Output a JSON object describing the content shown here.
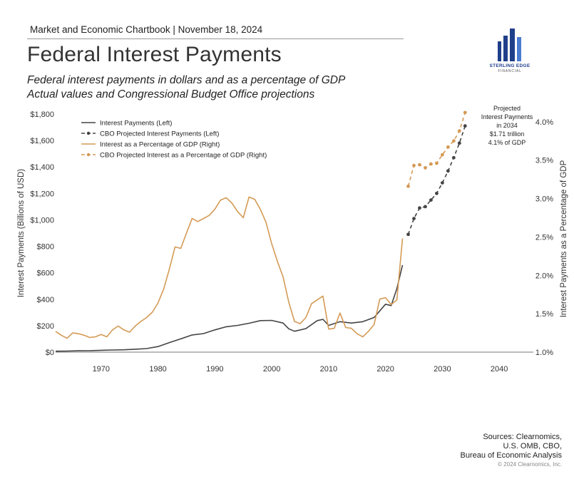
{
  "header": {
    "line": "Market and Economic Chartbook | November 18, 2024",
    "title": "Federal Interest Payments",
    "subtitle_1": "Federal interest payments in dollars and as a percentage of GDP",
    "subtitle_2": "Actual values and Congressional Budget Office projections"
  },
  "logo": {
    "name": "STERLING EDGE",
    "sub": "FINANCIAL",
    "color": "#1f3f8a"
  },
  "annotation": [
    "Projected",
    "Interest Payments",
    "in 2034",
    "$1.71 trillion",
    "4.1% of GDP"
  ],
  "sources": [
    "Sources: Clearnomics,",
    "U.S. OMB, CBO,",
    "Bureau of Economic Analysis"
  ],
  "copyright": "© 2024 Clearnomics, Inc.",
  "chart_data": {
    "type": "line",
    "ylabel": "Interest Payments (Billions of USD)",
    "y2label": "Interest Payments as a Percentage of GDP",
    "xlim": [
      1962,
      2046
    ],
    "ylim": [
      0,
      1800
    ],
    "y2lim": [
      1.0,
      4.1
    ],
    "x_ticks": [
      "1970",
      "1980",
      "1990",
      "2000",
      "2010",
      "2020",
      "2030",
      "2040"
    ],
    "x_tick_values": [
      1970,
      1980,
      1990,
      2000,
      2010,
      2020,
      2030,
      2040
    ],
    "y_ticks": [
      "$0",
      "$200",
      "$400",
      "$600",
      "$800",
      "$1,000",
      "$1,200",
      "$1,400",
      "$1,600",
      "$1,800"
    ],
    "y_tick_values": [
      0,
      200,
      400,
      600,
      800,
      1000,
      1200,
      1400,
      1600,
      1800
    ],
    "y2_ticks": [
      "1.0%",
      "1.5%",
      "2.0%",
      "2.5%",
      "3.0%",
      "3.5%",
      "4.0%"
    ],
    "y2_tick_values": [
      1.0,
      1.5,
      2.0,
      2.5,
      3.0,
      3.5,
      4.0
    ],
    "legend_position": "top-left",
    "colors": {
      "dark": "#444444",
      "orange": "#d49a55"
    },
    "series": [
      {
        "name": "Interest Payments (Left)",
        "axis": "left",
        "style": "solid",
        "color": "#444444",
        "x": [
          1962,
          1964,
          1966,
          1968,
          1970,
          1972,
          1974,
          1976,
          1978,
          1980,
          1982,
          1984,
          1986,
          1988,
          1990,
          1992,
          1994,
          1996,
          1998,
          2000,
          2002,
          2003,
          2004,
          2006,
          2008,
          2009,
          2010,
          2012,
          2014,
          2016,
          2018,
          2020,
          2021,
          2022,
          2023
        ],
        "y": [
          7,
          8,
          10,
          11,
          14,
          16,
          18,
          22,
          27,
          42,
          72,
          100,
          130,
          140,
          168,
          192,
          202,
          218,
          238,
          240,
          220,
          176,
          158,
          178,
          238,
          248,
          202,
          230,
          220,
          230,
          262,
          362,
          352,
          480,
          658
        ]
      },
      {
        "name": "CBO Projected Interest Payments (Left)",
        "axis": "left",
        "style": "dashed",
        "color": "#444444",
        "x": [
          2024,
          2025,
          2026,
          2027,
          2028,
          2029,
          2030,
          2031,
          2032,
          2033,
          2034
        ],
        "y": [
          890,
          1010,
          1090,
          1100,
          1150,
          1200,
          1280,
          1370,
          1470,
          1580,
          1710
        ]
      },
      {
        "name": "Interest as a Percentage of GDP (Right)",
        "axis": "right",
        "style": "solid",
        "color": "#d49a55",
        "x": [
          1962,
          1963,
          1964,
          1965,
          1966,
          1967,
          1968,
          1969,
          1970,
          1971,
          1972,
          1973,
          1974,
          1975,
          1976,
          1977,
          1978,
          1979,
          1980,
          1981,
          1982,
          1983,
          1984,
          1985,
          1986,
          1987,
          1988,
          1989,
          1990,
          1991,
          1992,
          1993,
          1994,
          1995,
          1996,
          1997,
          1998,
          1999,
          2000,
          2001,
          2002,
          2003,
          2004,
          2005,
          2006,
          2007,
          2008,
          2009,
          2010,
          2011,
          2012,
          2013,
          2014,
          2015,
          2016,
          2017,
          2018,
          2019,
          2020,
          2021,
          2022,
          2023
        ],
        "y": [
          1.27,
          1.22,
          1.18,
          1.25,
          1.24,
          1.22,
          1.19,
          1.2,
          1.23,
          1.2,
          1.29,
          1.34,
          1.29,
          1.26,
          1.34,
          1.4,
          1.45,
          1.52,
          1.64,
          1.82,
          2.08,
          2.37,
          2.35,
          2.55,
          2.74,
          2.7,
          2.74,
          2.78,
          2.86,
          2.98,
          3.01,
          2.94,
          2.83,
          2.75,
          3.02,
          2.99,
          2.86,
          2.69,
          2.41,
          2.18,
          1.98,
          1.65,
          1.4,
          1.37,
          1.45,
          1.63,
          1.68,
          1.73,
          1.3,
          1.31,
          1.51,
          1.32,
          1.31,
          1.24,
          1.2,
          1.27,
          1.36,
          1.69,
          1.71,
          1.62,
          1.68,
          2.48
        ]
      },
      {
        "name": "CBO Projected Interest as a Percentage of GDP (Right)",
        "axis": "right",
        "style": "dashed",
        "color": "#d49a55",
        "x": [
          2024,
          2025,
          2026,
          2027,
          2028,
          2029,
          2030,
          2031,
          2032,
          2033,
          2034
        ],
        "y": [
          3.16,
          3.43,
          3.44,
          3.4,
          3.45,
          3.46,
          3.57,
          3.67,
          3.75,
          3.88,
          4.12
        ]
      }
    ]
  }
}
